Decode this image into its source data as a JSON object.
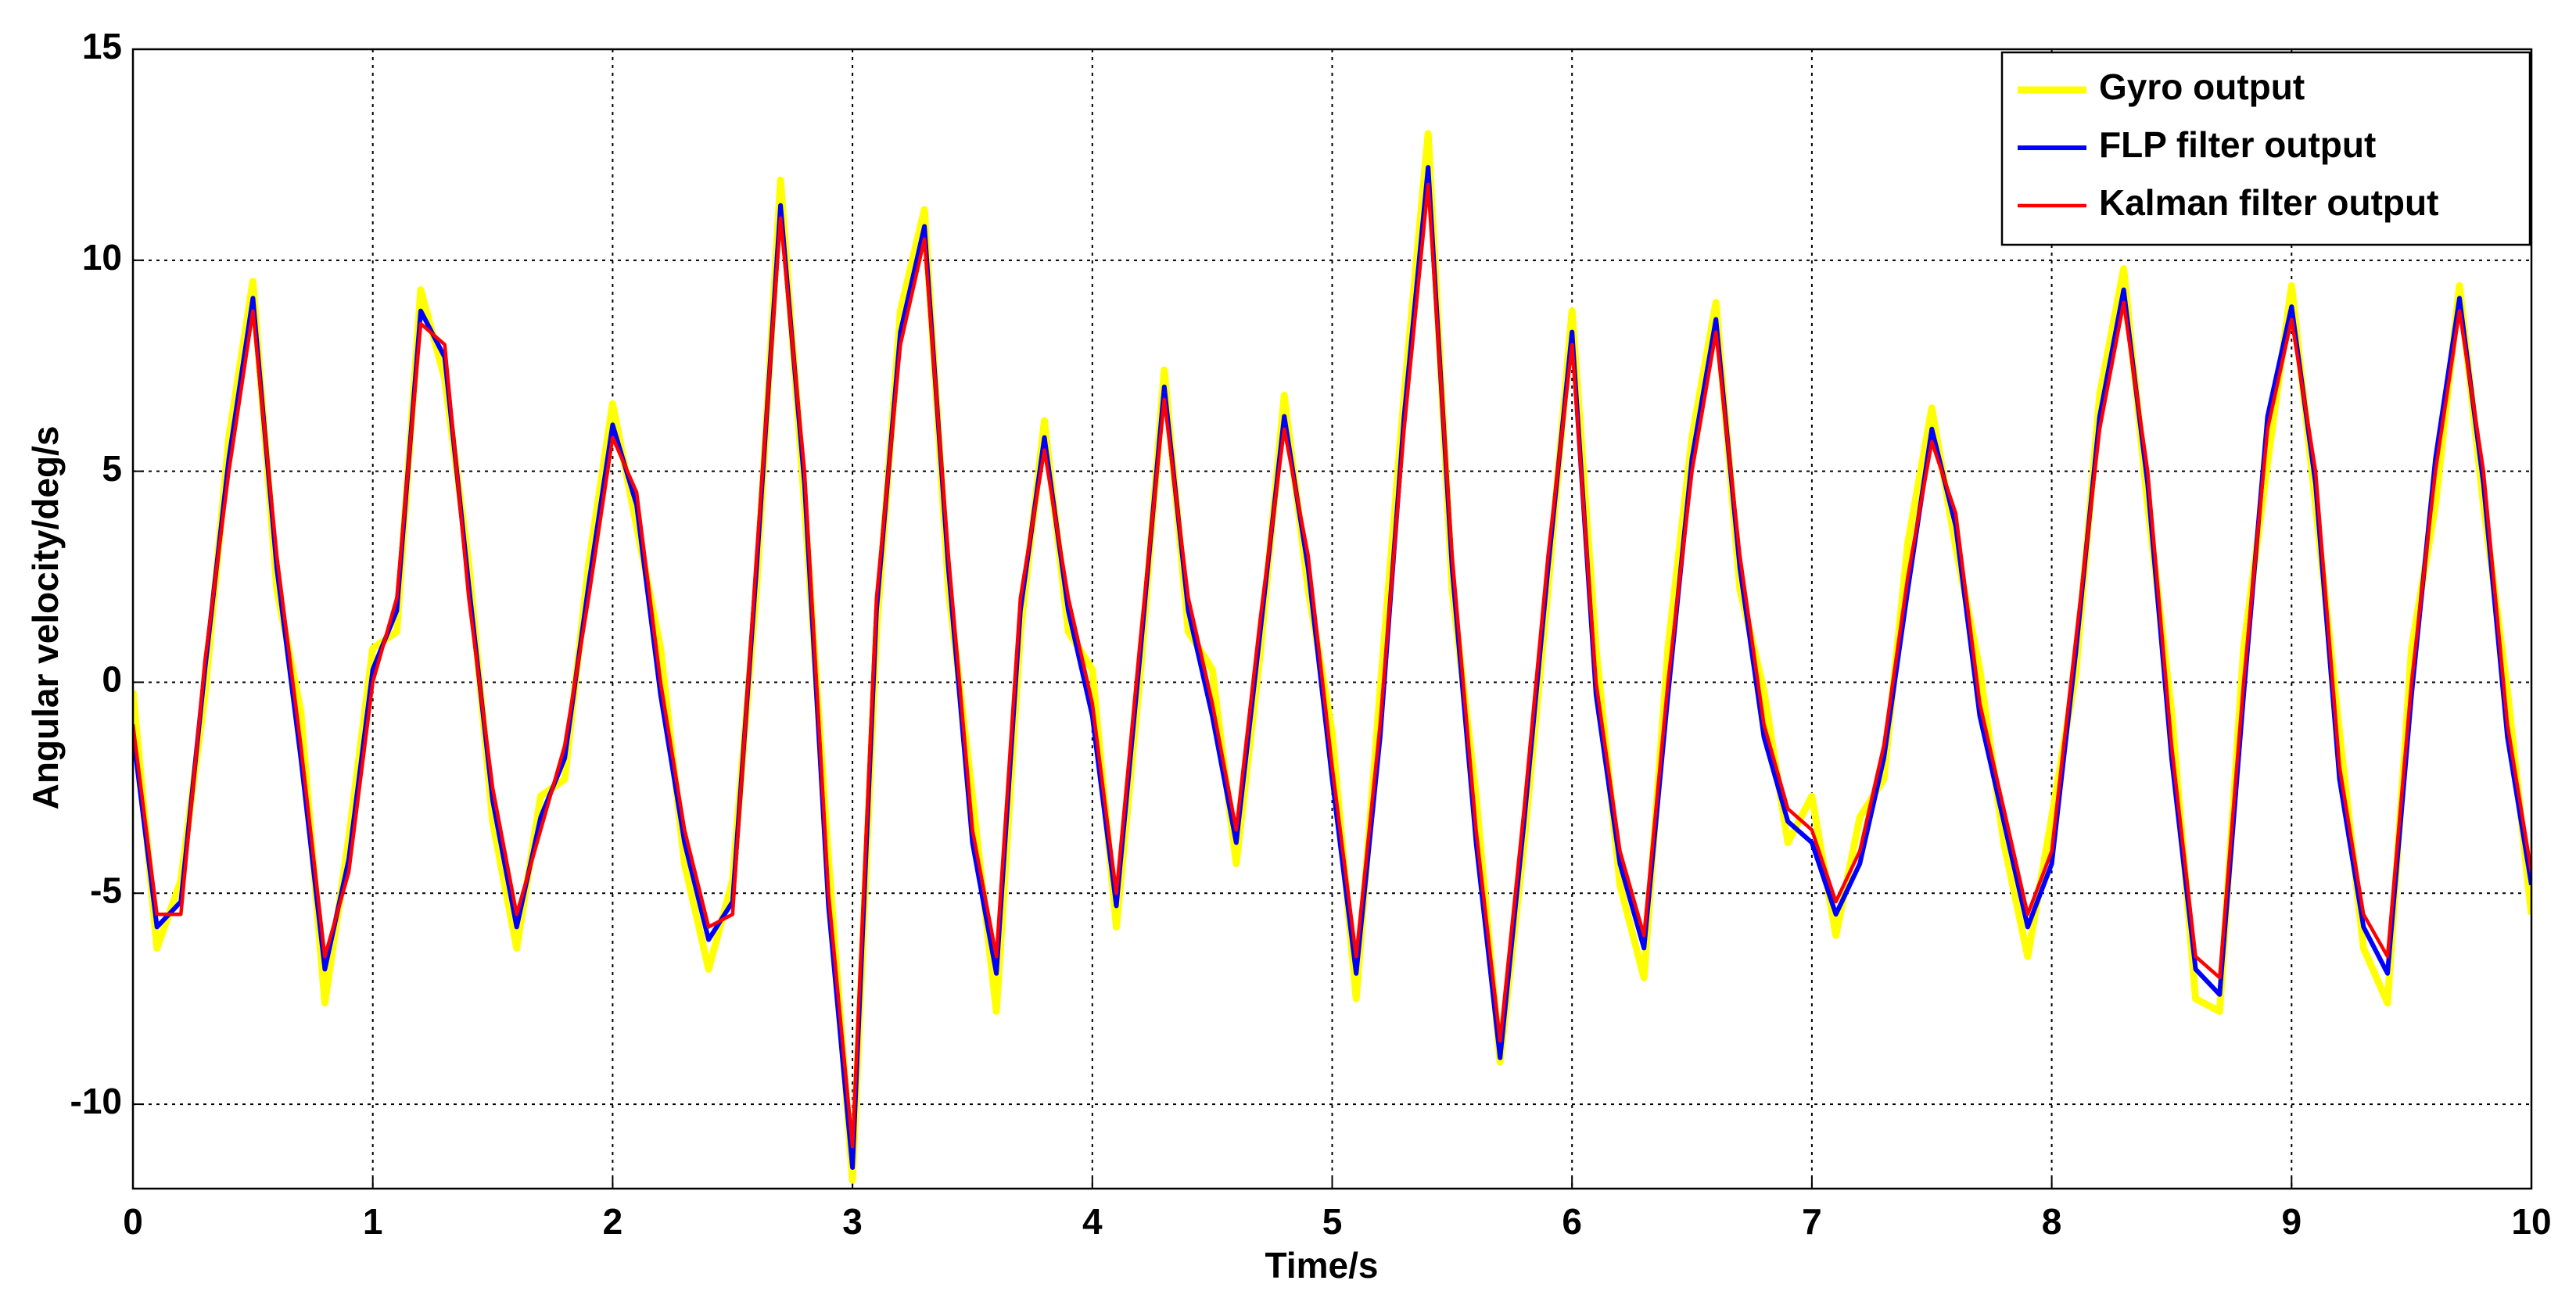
{
  "chart_data": {
    "type": "line",
    "x_label": "Time/s",
    "y_label": "Angular velocity/deg/s",
    "x": [
      0,
      0.1,
      0.2,
      0.3,
      0.4,
      0.5,
      0.6,
      0.7,
      0.8,
      0.9,
      1,
      1.1,
      1.2,
      1.3,
      1.4,
      1.5,
      1.6,
      1.7,
      1.8,
      1.9,
      2,
      2.1,
      2.2,
      2.3,
      2.4,
      2.5,
      2.6,
      2.7,
      2.8,
      2.9,
      3,
      3.1,
      3.2,
      3.3,
      3.4,
      3.5,
      3.6,
      3.7,
      3.8,
      3.9,
      4,
      4.1,
      4.2,
      4.3,
      4.4,
      4.5,
      4.6,
      4.7,
      4.8,
      4.9,
      5,
      5.1,
      5.2,
      5.3,
      5.4,
      5.5,
      5.6,
      5.7,
      5.8,
      5.9,
      6,
      6.1,
      6.2,
      6.3,
      6.4,
      6.5,
      6.6,
      6.7,
      6.8,
      6.9,
      7,
      7.1,
      7.2,
      7.3,
      7.4,
      7.5,
      7.6,
      7.7,
      7.8,
      7.9,
      8,
      8.1,
      8.2,
      8.3,
      8.4,
      8.5,
      8.6,
      8.7,
      8.8,
      8.9,
      9,
      9.1,
      9.2,
      9.3,
      9.4,
      9.5,
      9.6,
      9.7,
      9.8,
      9.9,
      10
    ],
    "series": [
      {
        "name": "Gyro output",
        "color": "#ffff00",
        "values": [
          -0.2,
          -6.3,
          -4.7,
          -0.3,
          5.8,
          9.5,
          2.2,
          -0.7,
          -7.6,
          -3.7,
          0.8,
          1.2,
          9.3,
          7.2,
          2.8,
          -3.3,
          -6.3,
          -2.7,
          -2.3,
          2.8,
          6.6,
          3.7,
          0.8,
          -4.3,
          -6.8,
          -4.7,
          2.2,
          11.9,
          4.2,
          -4.2,
          -11.8,
          1.2,
          8.8,
          11.2,
          2.2,
          -2.7,
          -7.8,
          1.2,
          6.2,
          1.2,
          0.3,
          -5.8,
          0.2,
          7.4,
          1.2,
          0.3,
          -4.3,
          0.7,
          6.8,
          2.2,
          -1.2,
          -7.5,
          -0.2,
          6.8,
          13,
          2.2,
          -2.7,
          -9,
          -3.8,
          2.2,
          8.8,
          0.8,
          -4.8,
          -7,
          0.8,
          5.8,
          9,
          2.2,
          -0.2,
          -3.8,
          -2.7,
          -6,
          -3.2,
          -2.3,
          3.3,
          6.5,
          3.2,
          0.3,
          -3.8,
          -6.5,
          -3.2,
          0.2,
          6.8,
          9.8,
          4.2,
          -0.7,
          -7.5,
          -7.8,
          0.8,
          5.2,
          9.4,
          4.2,
          -1.2,
          -6.3,
          -7.6,
          0.8,
          4.2,
          9.4,
          4.2,
          -0.2,
          -5.5
        ]
      },
      {
        "name": "FLP filter output",
        "color": "#0000ff",
        "values": [
          -1.2,
          -5.8,
          -5.2,
          0.3,
          5.3,
          9.1,
          2.7,
          -1.8,
          -6.8,
          -4.2,
          0.3,
          1.7,
          8.8,
          7.7,
          2.3,
          -2.8,
          -5.8,
          -3.2,
          -1.8,
          2.3,
          6.1,
          4.2,
          -0.3,
          -3.8,
          -6.1,
          -5.2,
          2.7,
          11.3,
          4.7,
          -5.3,
          -11.5,
          1.7,
          8.3,
          10.8,
          2.7,
          -3.8,
          -6.9,
          1.7,
          5.8,
          1.7,
          -0.8,
          -5.3,
          0.7,
          7,
          1.7,
          -0.8,
          -3.8,
          1.2,
          6.3,
          2.7,
          -2.3,
          -6.9,
          -1.3,
          6.3,
          12.2,
          2.7,
          -3.8,
          -8.9,
          -3.3,
          2.7,
          8.3,
          -0.3,
          -4.3,
          -6.3,
          -0.3,
          5.3,
          8.6,
          2.7,
          -1.3,
          -3.3,
          -3.8,
          -5.5,
          -4.3,
          -1.8,
          2.2,
          6,
          3.7,
          -0.8,
          -3.3,
          -5.8,
          -4.3,
          0.7,
          6.3,
          9.3,
          4.7,
          -1.8,
          -6.8,
          -7.4,
          -0.3,
          6.3,
          8.9,
          4.7,
          -2.3,
          -5.8,
          -6.9,
          -0.3,
          5.3,
          9.1,
          4.7,
          -1.3,
          -4.8
        ]
      },
      {
        "name": "Kalman filter output",
        "color": "#ff0000",
        "values": [
          -1,
          -5.5,
          -5.5,
          0.5,
          5,
          8.8,
          3,
          -1.5,
          -6.5,
          -4.5,
          0,
          2,
          8.5,
          8,
          2,
          -2.5,
          -5.5,
          -3.5,
          -1.5,
          2,
          5.8,
          4.5,
          0,
          -3.5,
          -5.8,
          -5.5,
          3,
          11,
          5,
          -5,
          -11,
          2,
          8,
          10.5,
          3,
          -3.5,
          -6.5,
          2,
          5.5,
          2,
          -0.5,
          -5,
          1,
          6.7,
          2,
          -0.5,
          -3.5,
          1.5,
          6,
          3,
          -2,
          -6.5,
          -1,
          6,
          11.8,
          3,
          -3.5,
          -8.5,
          -3,
          3,
          8,
          0,
          -4,
          -6,
          0,
          5,
          8.3,
          3,
          -1,
          -3,
          -3.5,
          -5.2,
          -4,
          -1.5,
          2.5,
          5.7,
          4,
          -0.5,
          -3,
          -5.5,
          -4,
          1,
          6,
          9,
          5,
          -1.5,
          -6.5,
          -7,
          0,
          6,
          8.6,
          5,
          -2,
          -5.5,
          -6.5,
          0,
          5,
          8.8,
          5,
          -1,
          -4.5
        ]
      }
    ],
    "xlim": [
      0,
      10
    ],
    "xticks": [
      0,
      1,
      2,
      3,
      4,
      5,
      6,
      7,
      8,
      9,
      10
    ],
    "ylim": [
      -12,
      15
    ],
    "yticks": [
      -10,
      -5,
      0,
      5,
      10,
      15
    ],
    "grid": true,
    "legend": "northeast"
  }
}
